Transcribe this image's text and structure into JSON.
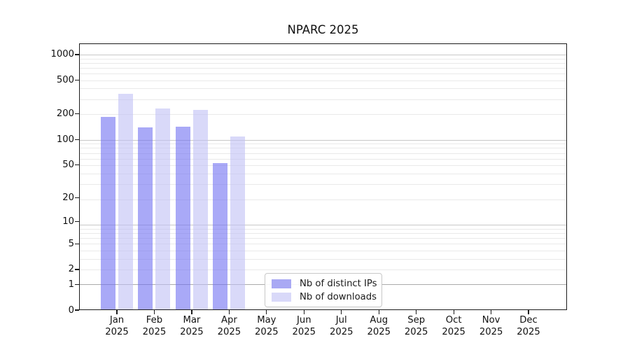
{
  "chart_data": {
    "type": "bar",
    "title": "NPARC 2025",
    "categories": [
      "Jan",
      "Feb",
      "Mar",
      "Apr",
      "May",
      "Jun",
      "Jul",
      "Aug",
      "Sep",
      "Oct",
      "Nov",
      "Dec"
    ],
    "x_tick_second_line": "2025",
    "series": [
      {
        "name": "Nb of distinct IPs",
        "legend_color": "#a9a9f4",
        "fill_color": "rgba(112,112,242,0.6)",
        "values": [
          185,
          140,
          142,
          52,
          0,
          0,
          0,
          0,
          0,
          0,
          0,
          0
        ]
      },
      {
        "name": "Nb of downloads",
        "legend_color": "#d9d9f9",
        "fill_color": "rgba(192,192,245,0.6)",
        "values": [
          345,
          230,
          222,
          108,
          0,
          0,
          0,
          0,
          0,
          0,
          0,
          0
        ]
      }
    ],
    "yscale": "log1p",
    "yticks": [
      0,
      1,
      2,
      5,
      10,
      20,
      50,
      100,
      200,
      500,
      1000
    ],
    "ylim": [
      0,
      1356
    ],
    "xlabel": "",
    "ylabel": "",
    "grid": true,
    "legend_position": "lower-center",
    "grid_minor_color": "#e9e9e9",
    "grid_major_color": "#c8c8c8",
    "grid_baseline_color": "#aaaaaa"
  }
}
